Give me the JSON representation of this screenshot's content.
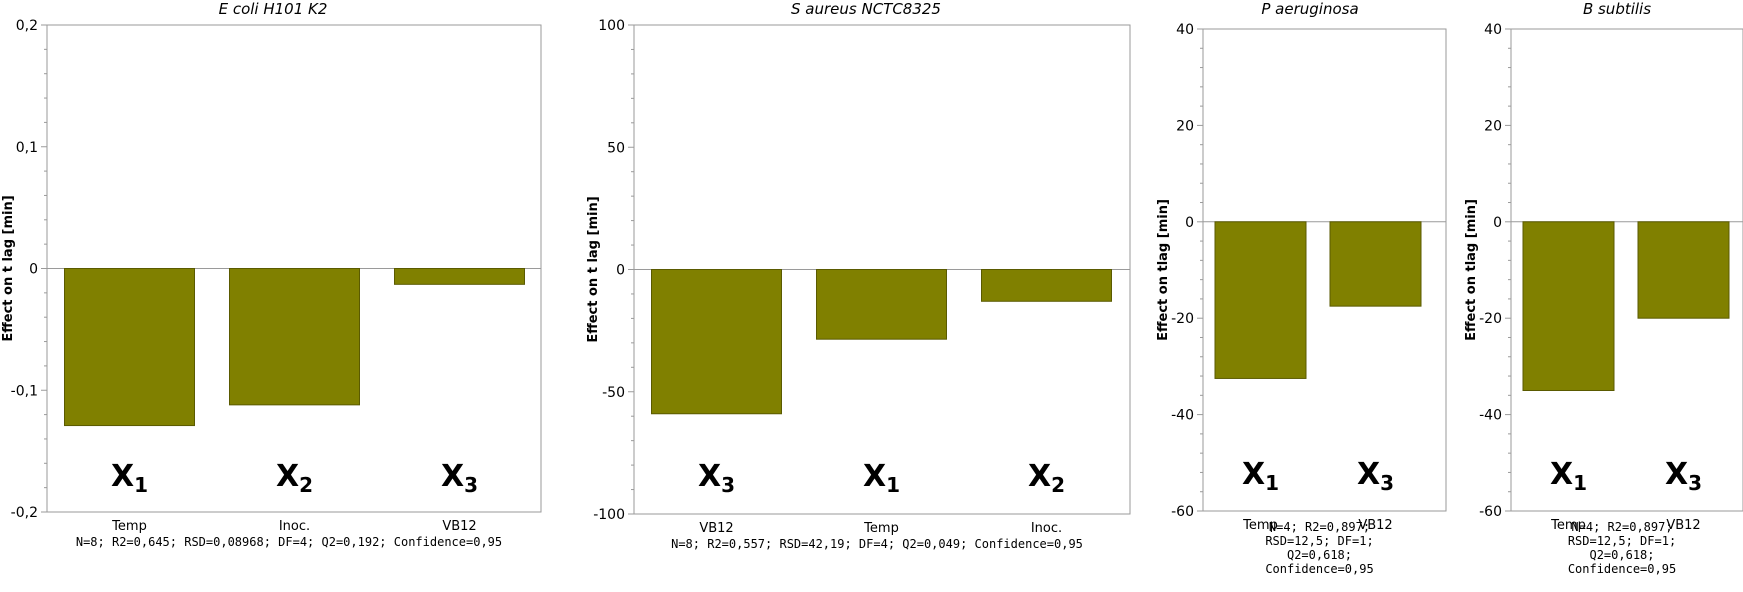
{
  "colors": {
    "bar_fill": "#808000",
    "bar_stroke": "#5a5a00",
    "axis": "#9a9a9a"
  },
  "chart_data": [
    {
      "type": "bar",
      "title": "E coli H101 K2",
      "ylabel": "Effect on t lag [min]",
      "ylim": [
        -0.2,
        0.2
      ],
      "yticks": [
        "-0,2",
        "-0,1",
        "0",
        "0,1",
        "0,2"
      ],
      "categories": [
        "Temp",
        "Inoc.",
        "VB12"
      ],
      "factor_labels": [
        {
          "letter": "X",
          "sub": "1"
        },
        {
          "letter": "X",
          "sub": "2"
        },
        {
          "letter": "X",
          "sub": "3"
        }
      ],
      "values": [
        -0.129,
        -0.112,
        -0.013
      ],
      "stats": [
        "N=8; R2=0,645; RSD=0,08968; DF=4; Q2=0,192; Confidence=0,95"
      ]
    },
    {
      "type": "bar",
      "title": "S aureus NCTC8325",
      "ylabel": "Effect on t lag [min]",
      "ylim": [
        -100,
        100
      ],
      "yticks": [
        "-100",
        "-50",
        "0",
        "50",
        "100"
      ],
      "categories": [
        "VB12",
        "Temp",
        "Inoc."
      ],
      "factor_labels": [
        {
          "letter": "X",
          "sub": "3"
        },
        {
          "letter": "X",
          "sub": "1"
        },
        {
          "letter": "X",
          "sub": "2"
        }
      ],
      "values": [
        -59,
        -28.5,
        -13
      ],
      "stats": [
        "N=8; R2=0,557; RSD=42,19; DF=4; Q2=0,049; Confidence=0,95"
      ]
    },
    {
      "type": "bar",
      "title": "P aeruginosa",
      "ylabel": "Effect on tlag [min]",
      "ylim": [
        -60,
        40
      ],
      "yticks": [
        "-60",
        "-40",
        "-20",
        "0",
        "20",
        "40"
      ],
      "categories": [
        "Temp",
        "VB12"
      ],
      "factor_labels": [
        {
          "letter": "X",
          "sub": "1"
        },
        {
          "letter": "X",
          "sub": "3"
        }
      ],
      "values": [
        -32.5,
        -17.5
      ],
      "stats": [
        "N=4; R2=0,897;",
        "RSD=12,5; DF=1;",
        "Q2=0,618;",
        "Confidence=0,95"
      ]
    },
    {
      "type": "bar",
      "title": "B subtilis",
      "ylabel": "Effect on tlag [min]",
      "ylim": [
        -60,
        40
      ],
      "yticks": [
        "-60",
        "-40",
        "-20",
        "0",
        "20",
        "40"
      ],
      "categories": [
        "Temp",
        "VB12"
      ],
      "factor_labels": [
        {
          "letter": "X",
          "sub": "1"
        },
        {
          "letter": "X",
          "sub": "3"
        }
      ],
      "values": [
        -35,
        -20
      ],
      "stats": [
        "N=4; R2=0,897;",
        "RSD=12,5; DF=1;",
        "Q2=0,618;",
        "Confidence=0,95"
      ]
    }
  ]
}
